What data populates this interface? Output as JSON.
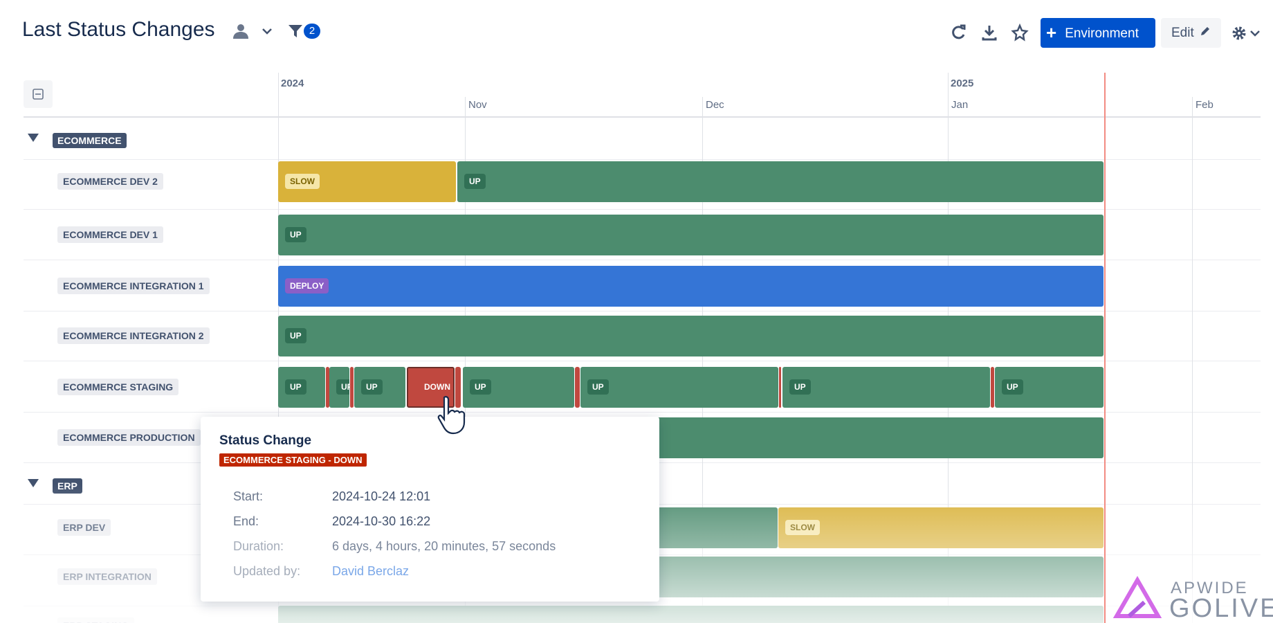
{
  "header": {
    "title": "Last Status Changes",
    "filter_count": 2,
    "environment_button": "Environment",
    "edit_button": "Edit"
  },
  "timeline": {
    "years": [
      "2024",
      "2025"
    ],
    "months": [
      "Nov",
      "Dec",
      "Jan",
      "Feb"
    ]
  },
  "groups": [
    {
      "name": "ECOMMERCE",
      "rows": [
        {
          "name": "ECOMMERCE DEV 2",
          "segments": [
            "SLOW",
            "UP"
          ]
        },
        {
          "name": "ECOMMERCE DEV 1",
          "segments": [
            "UP"
          ]
        },
        {
          "name": "ECOMMERCE INTEGRATION 1",
          "segments": [
            "DEPLOY"
          ]
        },
        {
          "name": "ECOMMERCE INTEGRATION 2",
          "segments": [
            "UP"
          ]
        },
        {
          "name": "ECOMMERCE STAGING",
          "segments": [
            "UP",
            "UP",
            "UP",
            "DOWN",
            "UP",
            "UP",
            "UP",
            "UP"
          ]
        },
        {
          "name": "ECOMMERCE PRODUCTION",
          "segments": []
        }
      ]
    },
    {
      "name": "ERP",
      "rows": [
        {
          "name": "ERP DEV",
          "segments": [
            "SLOW"
          ]
        },
        {
          "name": "ERP INTEGRATION",
          "segments": []
        },
        {
          "name": "ERP STAGING",
          "segments": []
        }
      ]
    }
  ],
  "tooltip": {
    "title": "Status Change",
    "tag": "ECOMMERCE STAGING - DOWN",
    "fields": [
      {
        "label": "Start:",
        "value": "2024-10-24 12:01"
      },
      {
        "label": "End:",
        "value": "2024-10-30 16:22"
      },
      {
        "label": "Duration:",
        "value": "6 days, 4 hours, 20 minutes, 57 seconds"
      },
      {
        "label": "Updated by:",
        "value": "David Berclaz"
      }
    ]
  },
  "logo": {
    "top": "APWIDE",
    "bottom": "GOLIVE"
  }
}
